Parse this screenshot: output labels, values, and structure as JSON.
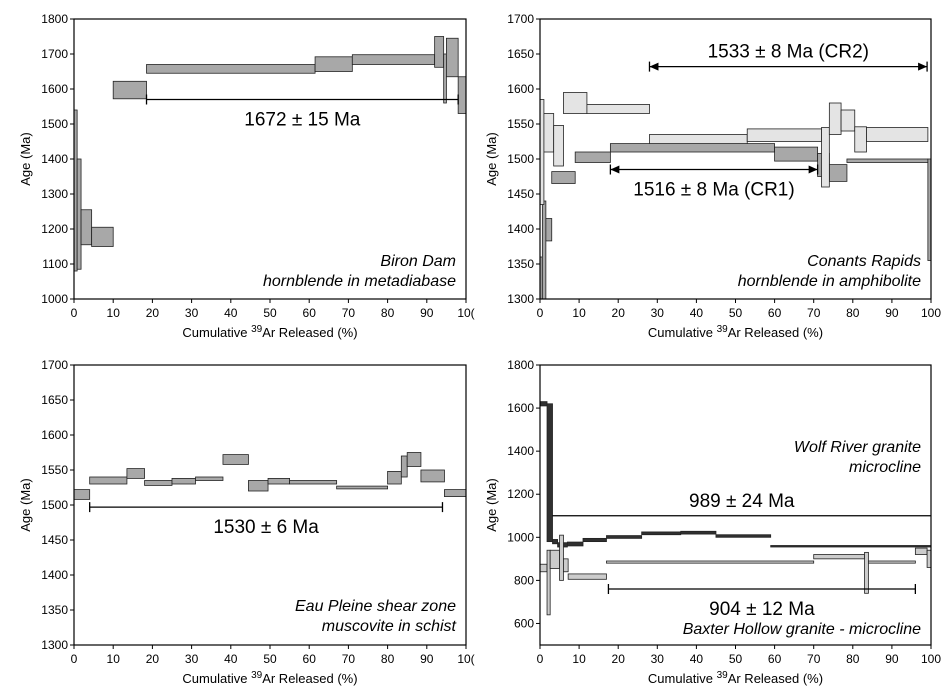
{
  "chart_data": [
    {
      "type": "step",
      "title": [
        "Biron Dam",
        "hornblende in metadiabase"
      ],
      "xlabel": "Cumulative 39Ar Released (%)",
      "ylabel": "Age (Ma)",
      "xlim": [
        0,
        100
      ],
      "ylim": [
        1000,
        1800
      ],
      "xticks": [
        0,
        10,
        20,
        30,
        40,
        50,
        60,
        70,
        80,
        90,
        "10("
      ],
      "yticks": [
        1000,
        1100,
        1200,
        1300,
        1400,
        1500,
        1600,
        1700,
        1800
      ],
      "series": [
        {
          "fill": "#a8a8a8",
          "steps": [
            {
              "x0": 0,
              "x1": 0.8,
              "lo": 1080,
              "hi": 1540
            },
            {
              "x0": 0.8,
              "x1": 1.8,
              "lo": 1085,
              "hi": 1400
            },
            {
              "x0": 1.8,
              "x1": 4.5,
              "lo": 1155,
              "hi": 1255
            },
            {
              "x0": 4.5,
              "x1": 10,
              "lo": 1150,
              "hi": 1205
            },
            {
              "x0": 10,
              "x1": 18.5,
              "lo": 1572,
              "hi": 1622
            },
            {
              "x0": 18.5,
              "x1": 61.5,
              "lo": 1645,
              "hi": 1670
            },
            {
              "x0": 61.5,
              "x1": 71,
              "lo": 1650,
              "hi": 1692
            },
            {
              "x0": 71,
              "x1": 92,
              "lo": 1670,
              "hi": 1698
            },
            {
              "x0": 92,
              "x1": 94.3,
              "lo": 1662,
              "hi": 1750
            },
            {
              "x0": 94.3,
              "x1": 95,
              "lo": 1560,
              "hi": 1700
            },
            {
              "x0": 95,
              "x1": 98,
              "lo": 1635,
              "hi": 1745
            },
            {
              "x0": 98,
              "x1": 100,
              "lo": 1530,
              "hi": 1635
            }
          ]
        }
      ],
      "plateaus": [
        {
          "label": "1672 ± 15 Ma",
          "x0": 18.5,
          "x1": 98,
          "y": 1570
        }
      ]
    },
    {
      "type": "step",
      "title": [
        "Conants Rapids",
        "hornblende in amphibolite"
      ],
      "xlabel": "Cumulative 39Ar Released (%)",
      "ylabel": "Age (Ma)",
      "xlim": [
        0,
        100
      ],
      "ylim": [
        1300,
        1700
      ],
      "xticks": [
        0,
        10,
        20,
        30,
        40,
        50,
        60,
        70,
        80,
        90,
        100
      ],
      "yticks": [
        1300,
        1350,
        1400,
        1450,
        1500,
        1550,
        1600,
        1650,
        1700
      ],
      "series": [
        {
          "name": "CR1",
          "fill": "#a8a8a8",
          "steps": [
            {
              "x0": 0,
              "x1": 0.6,
              "lo": 1300,
              "hi": 1360
            },
            {
              "x0": 0.6,
              "x1": 1.5,
              "lo": 1300,
              "hi": 1440
            },
            {
              "x0": 1.5,
              "x1": 3,
              "lo": 1383,
              "hi": 1415
            },
            {
              "x0": 3,
              "x1": 9,
              "lo": 1465,
              "hi": 1482
            },
            {
              "x0": 9,
              "x1": 18,
              "lo": 1495,
              "hi": 1510
            },
            {
              "x0": 18,
              "x1": 60,
              "lo": 1510,
              "hi": 1522
            },
            {
              "x0": 60,
              "x1": 71,
              "lo": 1497,
              "hi": 1517
            },
            {
              "x0": 71,
              "x1": 74,
              "lo": 1475,
              "hi": 1508
            },
            {
              "x0": 74,
              "x1": 78.5,
              "lo": 1468,
              "hi": 1492
            },
            {
              "x0": 78.5,
              "x1": 99.2,
              "lo": 1495,
              "hi": 1500
            },
            {
              "x0": 99.2,
              "x1": 100,
              "lo": 1355,
              "hi": 1500
            }
          ]
        },
        {
          "name": "CR2",
          "fill": "#e4e4e4",
          "steps": [
            {
              "x0": 0,
              "x1": 1,
              "lo": 1435,
              "hi": 1585
            },
            {
              "x0": 1,
              "x1": 3.5,
              "lo": 1510,
              "hi": 1565
            },
            {
              "x0": 3.5,
              "x1": 6,
              "lo": 1490,
              "hi": 1548
            },
            {
              "x0": 6,
              "x1": 12,
              "lo": 1565,
              "hi": 1595
            },
            {
              "x0": 12,
              "x1": 28,
              "lo": 1565,
              "hi": 1578
            },
            {
              "x0": 28,
              "x1": 53,
              "lo": 1522,
              "hi": 1535
            },
            {
              "x0": 53,
              "x1": 72,
              "lo": 1525,
              "hi": 1543
            },
            {
              "x0": 72,
              "x1": 74,
              "lo": 1460,
              "hi": 1545
            },
            {
              "x0": 74,
              "x1": 77,
              "lo": 1535,
              "hi": 1580
            },
            {
              "x0": 77,
              "x1": 80.5,
              "lo": 1540,
              "hi": 1570
            },
            {
              "x0": 80.5,
              "x1": 83.5,
              "lo": 1510,
              "hi": 1546
            },
            {
              "x0": 83.5,
              "x1": 99.2,
              "lo": 1525,
              "hi": 1545
            }
          ]
        }
      ],
      "plateaus": [
        {
          "label": "1533 ± 8 Ma (CR2)",
          "x0": 28,
          "x1": 99,
          "y": 1632,
          "arrows": true,
          "label_pos": "above"
        },
        {
          "label": "1516 ± 8 Ma (CR1)",
          "x0": 18,
          "x1": 71,
          "y": 1485,
          "arrows": true,
          "label_pos": "below"
        }
      ]
    },
    {
      "type": "step",
      "title": [
        "Eau Pleine shear zone",
        "muscovite in schist"
      ],
      "xlabel": "Cumulative 39Ar Released (%)",
      "ylabel": "Age (Ma)",
      "xlim": [
        0,
        100
      ],
      "ylim": [
        1300,
        1700
      ],
      "xticks": [
        0,
        10,
        20,
        30,
        40,
        50,
        60,
        70,
        80,
        90,
        "10("
      ],
      "yticks": [
        1300,
        1350,
        1400,
        1450,
        1500,
        1550,
        1600,
        1650,
        1700
      ],
      "series": [
        {
          "fill": "#a8a8a8",
          "steps": [
            {
              "x0": 0,
              "x1": 4,
              "lo": 1508,
              "hi": 1522
            },
            {
              "x0": 4,
              "x1": 13.5,
              "lo": 1530,
              "hi": 1540
            },
            {
              "x0": 13.5,
              "x1": 18,
              "lo": 1538,
              "hi": 1552
            },
            {
              "x0": 18,
              "x1": 25,
              "lo": 1528,
              "hi": 1535
            },
            {
              "x0": 25,
              "x1": 31,
              "lo": 1530,
              "hi": 1538
            },
            {
              "x0": 31,
              "x1": 38,
              "lo": 1535,
              "hi": 1540
            },
            {
              "x0": 38,
              "x1": 44.5,
              "lo": 1558,
              "hi": 1572
            },
            {
              "x0": 44.5,
              "x1": 49.5,
              "lo": 1520,
              "hi": 1535
            },
            {
              "x0": 49.5,
              "x1": 55,
              "lo": 1530,
              "hi": 1538
            },
            {
              "x0": 55,
              "x1": 67,
              "lo": 1530,
              "hi": 1535
            },
            {
              "x0": 67,
              "x1": 80,
              "lo": 1523,
              "hi": 1527
            },
            {
              "x0": 80,
              "x1": 83.5,
              "lo": 1530,
              "hi": 1548
            },
            {
              "x0": 83.5,
              "x1": 85,
              "lo": 1540,
              "hi": 1570
            },
            {
              "x0": 85,
              "x1": 88.5,
              "lo": 1555,
              "hi": 1575
            },
            {
              "x0": 88.5,
              "x1": 94.5,
              "lo": 1533,
              "hi": 1550
            },
            {
              "x0": 94.5,
              "x1": 100,
              "lo": 1512,
              "hi": 1522
            }
          ]
        }
      ],
      "plateaus": [
        {
          "label": "1530 ± 6 Ma",
          "x0": 4,
          "x1": 94,
          "y": 1497
        }
      ]
    },
    {
      "type": "step",
      "title": [
        "Wolf River granite",
        "microcline"
      ],
      "subtitle": "Baxter Hollow granite - microcline",
      "xlabel": "Cumulative 39Ar Released (%)",
      "ylabel": "Age (Ma)",
      "xlim": [
        0,
        100
      ],
      "ylim": [
        500,
        1800
      ],
      "xticks": [
        0,
        10,
        20,
        30,
        40,
        50,
        60,
        70,
        80,
        90,
        100
      ],
      "yticks": [
        600,
        800,
        1000,
        1200,
        1400,
        1600,
        1800
      ],
      "series": [
        {
          "name": "Wolf River granite - microcline",
          "fill": "#303030",
          "steps": [
            {
              "x0": 0,
              "x1": 1.8,
              "lo": 1610,
              "hi": 1630
            },
            {
              "x0": 1.8,
              "x1": 3.2,
              "lo": 980,
              "hi": 1620
            },
            {
              "x0": 3.2,
              "x1": 4.5,
              "lo": 970,
              "hi": 990
            },
            {
              "x0": 4.5,
              "x1": 7,
              "lo": 955,
              "hi": 975
            },
            {
              "x0": 7,
              "x1": 11,
              "lo": 960,
              "hi": 978
            },
            {
              "x0": 11,
              "x1": 17,
              "lo": 980,
              "hi": 995
            },
            {
              "x0": 17,
              "x1": 26,
              "lo": 995,
              "hi": 1008
            },
            {
              "x0": 26,
              "x1": 36,
              "lo": 1012,
              "hi": 1025
            },
            {
              "x0": 36,
              "x1": 45,
              "lo": 1015,
              "hi": 1028
            },
            {
              "x0": 45,
              "x1": 59,
              "lo": 1000,
              "hi": 1012
            },
            {
              "x0": 59,
              "x1": 100,
              "lo": 955,
              "hi": 962
            }
          ]
        },
        {
          "name": "Baxter Hollow granite - microcline",
          "fill": "#cccccc",
          "steps": [
            {
              "x0": 0,
              "x1": 1.8,
              "lo": 840,
              "hi": 875
            },
            {
              "x0": 1.8,
              "x1": 2.6,
              "lo": 640,
              "hi": 940
            },
            {
              "x0": 2.6,
              "x1": 5,
              "lo": 855,
              "hi": 940
            },
            {
              "x0": 5,
              "x1": 6,
              "lo": 800,
              "hi": 1010
            },
            {
              "x0": 6,
              "x1": 7.2,
              "lo": 840,
              "hi": 900
            },
            {
              "x0": 7.2,
              "x1": 17,
              "lo": 805,
              "hi": 830
            },
            {
              "x0": 17,
              "x1": 70,
              "lo": 880,
              "hi": 890
            },
            {
              "x0": 70,
              "x1": 83,
              "lo": 900,
              "hi": 920
            },
            {
              "x0": 83,
              "x1": 84,
              "lo": 740,
              "hi": 930
            },
            {
              "x0": 84,
              "x1": 96,
              "lo": 880,
              "hi": 890
            },
            {
              "x0": 96,
              "x1": 99,
              "lo": 920,
              "hi": 950
            },
            {
              "x0": 99,
              "x1": 100,
              "lo": 860,
              "hi": 940
            }
          ]
        }
      ],
      "plateaus": [
        {
          "label": "989 ± 24 Ma",
          "x0": 3.2,
          "x1": 100,
          "y": 1100,
          "style": "line",
          "label_pos": "above"
        },
        {
          "label": "904 ± 12 Ma",
          "x0": 17.5,
          "x1": 96,
          "y": 760
        }
      ]
    }
  ]
}
